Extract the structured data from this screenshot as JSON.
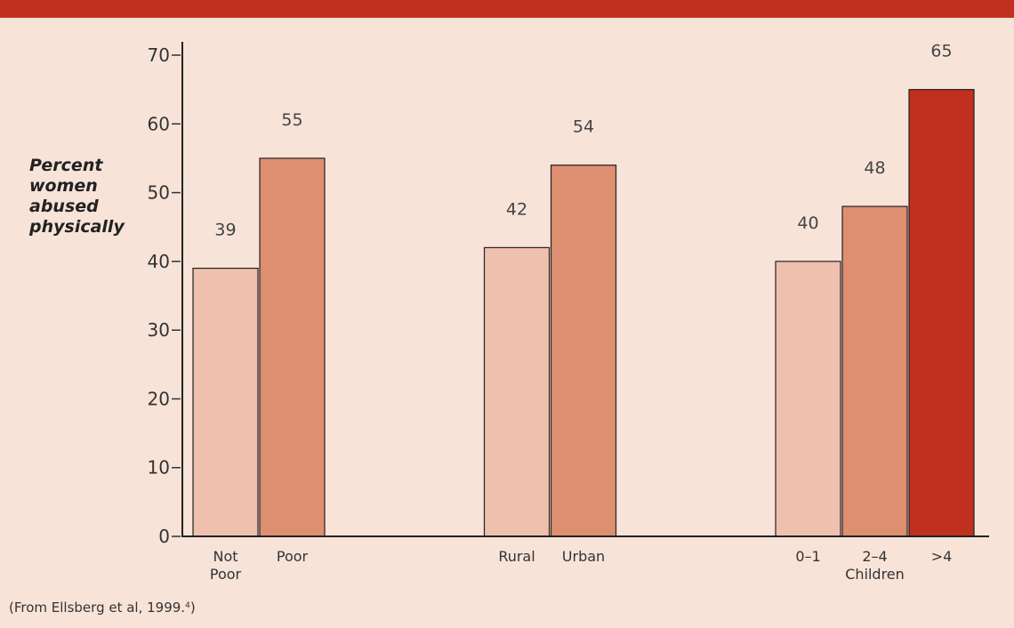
{
  "chart_data": {
    "type": "bar",
    "y_label": "Percent women abused physically",
    "groups": [
      {
        "categories": [
          "Not Poor",
          "Poor"
        ],
        "values": [
          39,
          55
        ],
        "colors": [
          "#f0c0ae",
          "#de8f71"
        ]
      },
      {
        "categories": [
          "Rural",
          "Urban"
        ],
        "values": [
          42,
          54
        ],
        "colors": [
          "#f0c0ae",
          "#de8f71"
        ]
      },
      {
        "categories": [
          "0–1",
          "2–4",
          ">4"
        ],
        "values": [
          40,
          48,
          65
        ],
        "colors": [
          "#f0c0ae",
          "#de8f71",
          "#c0301f"
        ],
        "label": "Children"
      }
    ],
    "ylim": [
      0,
      70
    ],
    "yticks": [
      0,
      10,
      20,
      30,
      40,
      50,
      60,
      70
    ],
    "source": [
      "(From Ellsberg et al, 1999.",
      "4",
      ")"
    ]
  }
}
